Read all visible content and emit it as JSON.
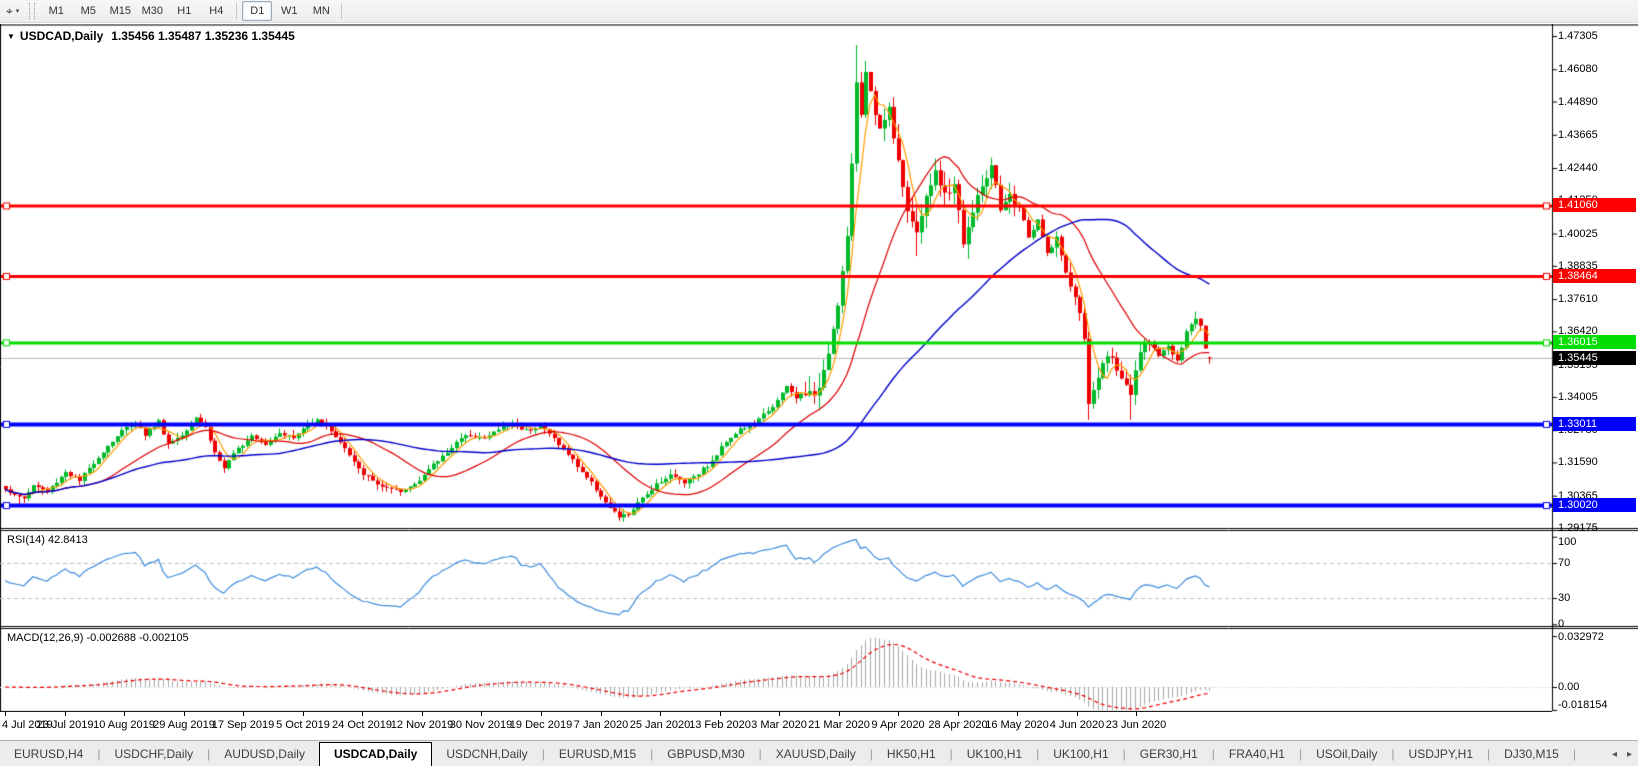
{
  "toolbar": {
    "tool_icon": "⌖",
    "tool_caret": "▾",
    "timeframes": [
      "M1",
      "M5",
      "M15",
      "M30",
      "H1",
      "H4",
      "D1",
      "W1",
      "MN"
    ],
    "active_timeframe": "D1",
    "group_separators_after": [
      "H4",
      "MN"
    ]
  },
  "chart": {
    "dropdown_glyph": "▼",
    "symbol": "USDCAD,Daily",
    "ohlc_text": "1.35456 1.35487 1.35236 1.35445",
    "price_axis_ticks": [
      "1.47305",
      "1.46080",
      "1.44890",
      "1.43665",
      "1.42440",
      "1.41250",
      "1.40025",
      "1.38835",
      "1.37610",
      "1.36420",
      "1.35195",
      "1.34005",
      "1.32780",
      "1.31590",
      "1.30365",
      "1.29175"
    ],
    "price_lines": [
      {
        "label": "1.41060",
        "price": 1.4106,
        "color": "#ff0000",
        "thickness": 3
      },
      {
        "label": "1.38464",
        "price": 1.38464,
        "color": "#ff0000",
        "thickness": 3
      },
      {
        "label": "1.36015",
        "price": 1.36015,
        "color": "#00dd00",
        "thickness": 3
      },
      {
        "label": "1.33011",
        "price": 1.33011,
        "color": "#0000ff",
        "thickness": 4
      },
      {
        "label": "1.30020",
        "price": 1.3002,
        "color": "#0000ff",
        "thickness": 4
      }
    ],
    "current_price": {
      "label": "1.35445",
      "price": 1.35445,
      "line_color": "#b4b4b4",
      "badge_color": "#000000"
    },
    "colors": {
      "bull": "#00b92a",
      "bear": "#ee0000",
      "ma_fast": "#ff9d00",
      "ma_mid": "#dd0000",
      "ma_slow": "#0000cc",
      "axis_line": "#000000",
      "background": "#ffffff"
    },
    "moving_averages": [
      {
        "name": "ma-fast",
        "period": 5,
        "color": "#ff9d00"
      },
      {
        "name": "ma-mid",
        "period": 21,
        "color": "#dd0000"
      },
      {
        "name": "ma-slow",
        "period": 60,
        "color": "#0000cc"
      }
    ]
  },
  "rsi": {
    "label": "RSI(14) 42.8413",
    "period": 14,
    "line_color": "#3f8ede",
    "level_color": "#c0c0c0",
    "ticks": [
      {
        "text": "100",
        "value": 100
      },
      {
        "text": "70",
        "value": 70
      },
      {
        "text": "30",
        "value": 30
      },
      {
        "text": "0",
        "value": 0
      }
    ],
    "dashed_levels": [
      70,
      30
    ]
  },
  "macd": {
    "label": "MACD(12,26,9) -0.002688 -0.002105",
    "histogram_color": "#a8a8a8",
    "signal_color": "#ee0000",
    "ticks": [
      {
        "text": "0.032972",
        "value": 0.032972
      },
      {
        "text": "0.00",
        "value": 0
      },
      {
        "text": "-0.018154",
        "value": -0.018154
      }
    ]
  },
  "date_axis": {
    "labels": [
      "4 Jul 2019",
      "23 Jul 2019",
      "10 Aug 2019",
      "29 Aug 2019",
      "17 Sep 2019",
      "5 Oct 2019",
      "24 Oct 2019",
      "12 Nov 2019",
      "30 Nov 2019",
      "19 Dec 2019",
      "7 Jan 2020",
      "25 Jan 2020",
      "13 Feb 2020",
      "3 Mar 2020",
      "21 Mar 2020",
      "9 Apr 2020",
      "28 Apr 2020",
      "16 May 2020",
      "4 Jun 2020",
      "23 Jun 2020"
    ]
  },
  "tabs": {
    "items": [
      "EURUSD,H4",
      "USDCHF,Daily",
      "AUDUSD,Daily",
      "USDCAD,Daily",
      "USDCNH,Daily",
      "EURUSD,M15",
      "GBPUSD,M30",
      "XAUUSD,Daily",
      "HK50,H1",
      "UK100,H1",
      "UK100,H1",
      "GER30,H1",
      "FRA40,H1",
      "USOil,Daily",
      "USDJPY,H1",
      "DJ30,M15"
    ],
    "active": "USDCAD,Daily",
    "scroll_left": "◂",
    "scroll_right": "▸"
  },
  "chart_data": {
    "type": "candlestick",
    "symbol": "USDCAD",
    "timeframe": "Daily",
    "bar_count": 260,
    "last_bar": {
      "open": 1.35456,
      "high": 1.35487,
      "low": 1.35236,
      "close": 1.35445
    },
    "close_anchors": [
      [
        0,
        1.3065
      ],
      [
        2,
        1.3035
      ],
      [
        4,
        1.3028
      ],
      [
        6,
        1.3075
      ],
      [
        9,
        1.3052
      ],
      [
        13,
        1.3125
      ],
      [
        16,
        1.309
      ],
      [
        19,
        1.316
      ],
      [
        22,
        1.322
      ],
      [
        25,
        1.3275
      ],
      [
        28,
        1.3308
      ],
      [
        30,
        1.3262
      ],
      [
        33,
        1.331
      ],
      [
        35,
        1.3228
      ],
      [
        38,
        1.3262
      ],
      [
        41,
        1.3328
      ],
      [
        43,
        1.329
      ],
      [
        45,
        1.3195
      ],
      [
        47,
        1.3138
      ],
      [
        50,
        1.321
      ],
      [
        53,
        1.3262
      ],
      [
        56,
        1.3228
      ],
      [
        59,
        1.3272
      ],
      [
        62,
        1.3248
      ],
      [
        65,
        1.33
      ],
      [
        67,
        1.3322
      ],
      [
        70,
        1.3278
      ],
      [
        73,
        1.321
      ],
      [
        76,
        1.3132
      ],
      [
        79,
        1.309
      ],
      [
        82,
        1.3062
      ],
      [
        85,
        1.3048
      ],
      [
        88,
        1.3082
      ],
      [
        91,
        1.3132
      ],
      [
        94,
        1.3182
      ],
      [
        97,
        1.3235
      ],
      [
        100,
        1.3262
      ],
      [
        103,
        1.3246
      ],
      [
        106,
        1.3282
      ],
      [
        109,
        1.3302
      ],
      [
        112,
        1.3278
      ],
      [
        115,
        1.3295
      ],
      [
        118,
        1.3248
      ],
      [
        121,
        1.3188
      ],
      [
        124,
        1.3125
      ],
      [
        127,
        1.3062
      ],
      [
        130,
        1.2988
      ],
      [
        132,
        1.2958
      ],
      [
        134,
        1.2968
      ],
      [
        137,
        1.3025
      ],
      [
        140,
        1.3082
      ],
      [
        143,
        1.3112
      ],
      [
        146,
        1.3088
      ],
      [
        149,
        1.3122
      ],
      [
        152,
        1.3162
      ],
      [
        155,
        1.324
      ],
      [
        158,
        1.3282
      ],
      [
        161,
        1.3298
      ],
      [
        164,
        1.3352
      ],
      [
        166,
        1.3385
      ],
      [
        168,
        1.3438
      ],
      [
        170,
        1.3395
      ],
      [
        172,
        1.3425
      ],
      [
        174,
        1.3388
      ],
      [
        176,
        1.3508
      ],
      [
        178,
        1.3652
      ],
      [
        180,
        1.3858
      ],
      [
        181,
        1.3995
      ],
      [
        182,
        1.424
      ],
      [
        183,
        1.4565
      ],
      [
        184,
        1.4438
      ],
      [
        185,
        1.4618
      ],
      [
        186,
        1.4512
      ],
      [
        188,
        1.4392
      ],
      [
        190,
        1.4462
      ],
      [
        192,
        1.4282
      ],
      [
        194,
        1.4092
      ],
      [
        196,
        1.3988
      ],
      [
        198,
        1.4152
      ],
      [
        200,
        1.4222
      ],
      [
        202,
        1.4138
      ],
      [
        204,
        1.4188
      ],
      [
        206,
        1.3972
      ],
      [
        208,
        1.4078
      ],
      [
        210,
        1.4182
      ],
      [
        212,
        1.4242
      ],
      [
        214,
        1.4082
      ],
      [
        216,
        1.4135
      ],
      [
        218,
        1.4105
      ],
      [
        220,
        1.3988
      ],
      [
        222,
        1.4048
      ],
      [
        224,
        1.3928
      ],
      [
        226,
        1.3988
      ],
      [
        228,
        1.3848
      ],
      [
        230,
        1.3772
      ],
      [
        232,
        1.3622
      ],
      [
        233,
        1.3368
      ],
      [
        234,
        1.3422
      ],
      [
        236,
        1.3525
      ],
      [
        238,
        1.3558
      ],
      [
        240,
        1.3458
      ],
      [
        242,
        1.3405
      ],
      [
        244,
        1.3568
      ],
      [
        246,
        1.3608
      ],
      [
        248,
        1.3558
      ],
      [
        250,
        1.3588
      ],
      [
        252,
        1.3528
      ],
      [
        254,
        1.3638
      ],
      [
        256,
        1.3692
      ],
      [
        257,
        1.3665
      ],
      [
        258,
        1.3585
      ],
      [
        259,
        1.35445
      ]
    ],
    "wick_overrides": {
      "3": {
        "low": 1.2995
      },
      "183": {
        "high": 1.4697
      },
      "196": {
        "low": 1.392
      },
      "233": {
        "low": 1.3316
      },
      "242": {
        "low": 1.3316
      },
      "256": {
        "high": 1.3715
      }
    },
    "horizontal_levels": [
      1.4106,
      1.38464,
      1.36015,
      1.33011,
      1.3002
    ],
    "indicators": {
      "rsi_value": 42.8413,
      "macd_value": -0.002688,
      "macd_signal": -0.002105
    }
  }
}
